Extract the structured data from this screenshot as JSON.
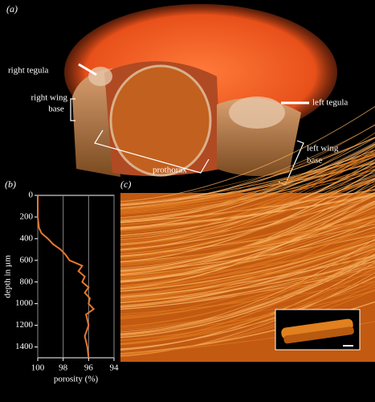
{
  "panel_labels": [
    "(a)",
    "(b)",
    "(c)"
  ],
  "annotations": {
    "right_tegula": "right tegula",
    "right_wing_base": [
      "right wing",
      "base"
    ],
    "left_tegula": "left tegula",
    "left_wing_base": [
      "left wing",
      "base"
    ],
    "prothorax": "prothorax"
  },
  "chart_data": {
    "type": "line",
    "x_label": "porosity (%)",
    "y_label": "depth in µm",
    "x": [
      100,
      100,
      99.9,
      99.7,
      99.2,
      98.8,
      98.2,
      97.8,
      97.5,
      96.5,
      96.8,
      96.3,
      96.5,
      96.0,
      96.3,
      95.9,
      96.0,
      95.6,
      96.2,
      96.0,
      96.3,
      96.1,
      96.0
    ],
    "values": [
      0,
      200,
      300,
      350,
      400,
      450,
      500,
      550,
      600,
      650,
      700,
      750,
      800,
      850,
      900,
      950,
      1000,
      1050,
      1100,
      1200,
      1300,
      1400,
      1500
    ],
    "color": "#e8772e",
    "xlim": [
      100,
      94
    ],
    "xticks": [
      100,
      98,
      96,
      94
    ],
    "ylim": [
      0,
      1500
    ],
    "yticks": [
      0,
      200,
      400,
      600,
      800,
      1000,
      1200,
      1400
    ],
    "grid": "x"
  }
}
